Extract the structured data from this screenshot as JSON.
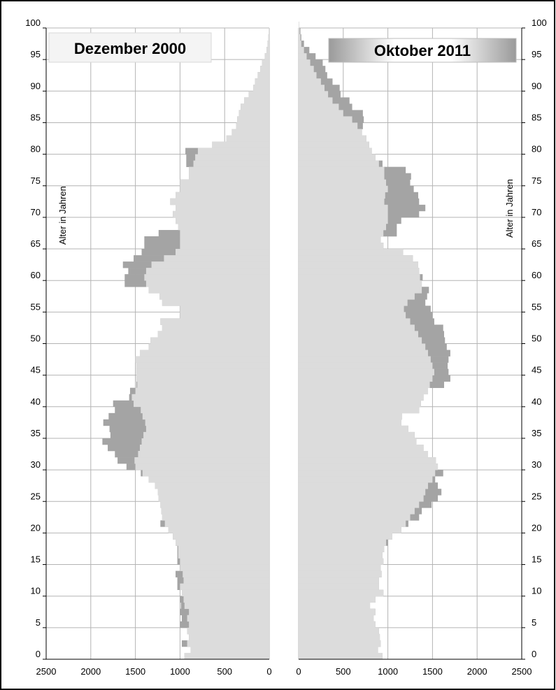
{
  "chart_data": {
    "type": "bar",
    "subtype": "population-pyramid",
    "y_axis_label": "Alter in Jahren",
    "y_range": [
      0,
      100
    ],
    "y_ticks": [
      0,
      5,
      10,
      15,
      20,
      25,
      30,
      35,
      40,
      45,
      50,
      55,
      60,
      65,
      70,
      75,
      80,
      85,
      90,
      95,
      100
    ],
    "x_range": [
      0,
      2500
    ],
    "x_ticks_left": [
      "2500",
      "2000",
      "1500",
      "1000",
      "500",
      "0"
    ],
    "x_ticks_right": [
      "0",
      "500",
      "1000",
      "1500",
      "2000",
      "2500"
    ],
    "grid": true,
    "colors": {
      "light": "#dcdcdc",
      "dark": "#a4a4a4",
      "grid": "#b4b4b4"
    },
    "panels": [
      {
        "title": "Dezember 2000",
        "side": "left",
        "light_values": [
          950,
          880,
          920,
          900,
          920,
          900,
          920,
          900,
          950,
          960,
          980,
          1000,
          960,
          970,
          1000,
          1000,
          1020,
          1020,
          1050,
          1080,
          1130,
          1170,
          1200,
          1210,
          1220,
          1240,
          1250,
          1280,
          1350,
          1420,
          1500,
          1510,
          1470,
          1450,
          1430,
          1410,
          1380,
          1390,
          1420,
          1440,
          1520,
          1540,
          1500,
          1480,
          1490,
          1490,
          1490,
          1500,
          1450,
          1350,
          1330,
          1250,
          1200,
          1220,
          1000,
          1000,
          1200,
          1230,
          1350,
          1380,
          1400,
          1380,
          1320,
          1180,
          1050,
          1000,
          1000,
          1000,
          1020,
          1050,
          1080,
          1050,
          1110,
          1050,
          1000,
          1000,
          900,
          900,
          850,
          830,
          800,
          640,
          480,
          420,
          370,
          360,
          340,
          320,
          280,
          230,
          180,
          160,
          130,
          100,
          80,
          50,
          30,
          20,
          10,
          5
        ],
        "dark_values": [
          950,
          880,
          980,
          900,
          920,
          1000,
          980,
          1000,
          990,
          1000,
          980,
          1030,
          1030,
          1050,
          1000,
          1030,
          1030,
          1030,
          1050,
          1080,
          1130,
          1220,
          1200,
          1210,
          1220,
          1240,
          1250,
          1280,
          1350,
          1440,
          1600,
          1700,
          1730,
          1810,
          1870,
          1780,
          1790,
          1860,
          1800,
          1730,
          1750,
          1570,
          1560,
          1490,
          1490,
          1490,
          1490,
          1500,
          1450,
          1350,
          1330,
          1250,
          1200,
          1220,
          1000,
          1000,
          1200,
          1230,
          1350,
          1620,
          1620,
          1580,
          1640,
          1520,
          1430,
          1400,
          1400,
          1240,
          1020,
          1050,
          1080,
          1050,
          1110,
          1050,
          1000,
          1000,
          900,
          900,
          930,
          930,
          940,
          640,
          480,
          420,
          370,
          360,
          340,
          320,
          280,
          230,
          180,
          160,
          130,
          100,
          80,
          50,
          30,
          20,
          10,
          5
        ]
      },
      {
        "title": "Oktober 2011",
        "side": "right",
        "light_values": [
          940,
          890,
          920,
          910,
          900,
          860,
          840,
          860,
          800,
          860,
          950,
          900,
          900,
          930,
          920,
          950,
          940,
          960,
          980,
          1050,
          1150,
          1200,
          1250,
          1300,
          1350,
          1400,
          1420,
          1450,
          1500,
          1530,
          1560,
          1540,
          1450,
          1400,
          1320,
          1300,
          1230,
          1150,
          1160,
          1350,
          1370,
          1400,
          1450,
          1470,
          1500,
          1520,
          1500,
          1480,
          1450,
          1420,
          1380,
          1340,
          1300,
          1250,
          1200,
          1180,
          1220,
          1300,
          1380,
          1380,
          1360,
          1350,
          1340,
          1280,
          1170,
          950,
          920,
          950,
          980,
          1000,
          1000,
          1000,
          960,
          970,
          1000,
          980,
          960,
          960,
          900,
          860,
          820,
          790,
          760,
          710,
          660,
          600,
          500,
          450,
          380,
          330,
          290,
          250,
          200,
          170,
          130,
          90,
          60,
          30,
          20,
          10,
          5
        ],
        "dark_values": [
          940,
          890,
          920,
          910,
          900,
          860,
          840,
          860,
          800,
          860,
          950,
          900,
          900,
          930,
          920,
          950,
          940,
          960,
          1000,
          1050,
          1150,
          1230,
          1350,
          1380,
          1490,
          1560,
          1600,
          1560,
          1530,
          1620,
          1560,
          1540,
          1450,
          1400,
          1320,
          1300,
          1230,
          1150,
          1160,
          1350,
          1370,
          1400,
          1450,
          1630,
          1700,
          1680,
          1670,
          1680,
          1700,
          1660,
          1640,
          1630,
          1620,
          1520,
          1500,
          1480,
          1420,
          1440,
          1460,
          1380,
          1390,
          1350,
          1340,
          1280,
          1170,
          950,
          920,
          1100,
          1100,
          1150,
          1350,
          1420,
          1350,
          1340,
          1290,
          1250,
          1260,
          1200,
          940,
          860,
          820,
          790,
          760,
          710,
          720,
          730,
          720,
          600,
          570,
          470,
          460,
          380,
          320,
          300,
          270,
          190,
          120,
          60,
          30,
          20,
          5
        ]
      }
    ]
  }
}
